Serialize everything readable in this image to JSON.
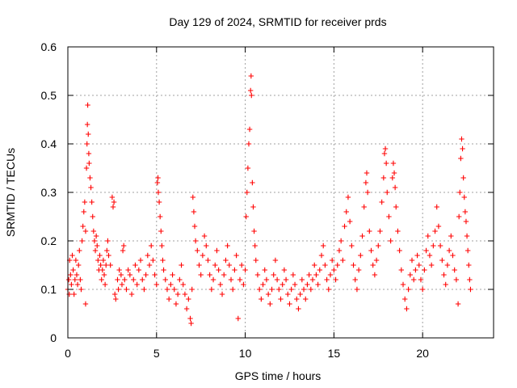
{
  "chart_data": {
    "type": "scatter",
    "title": "Day 129 of 2024, SRMTID for receiver prds",
    "xlabel": "GPS time / hours",
    "ylabel": "SRMTID / TECUs",
    "xlim": [
      0,
      24
    ],
    "ylim": [
      0,
      0.6
    ],
    "xticks": [
      0,
      5,
      10,
      15,
      20
    ],
    "xtick_labels": [
      "0",
      "5",
      "10",
      "15",
      "20"
    ],
    "yticks": [
      0,
      0.1,
      0.2,
      0.3,
      0.4,
      0.5,
      0.6
    ],
    "ytick_labels": [
      "0",
      "0.1",
      "0.2",
      "0.3",
      "0.4",
      "0.5",
      "0.6"
    ],
    "grid": true,
    "marker": "+",
    "point_color": "#ff0000",
    "series": [
      {
        "name": "SRMTID",
        "points": [
          [
            0.0,
            0.1
          ],
          [
            0.05,
            0.12
          ],
          [
            0.08,
            0.09
          ],
          [
            0.1,
            0.16
          ],
          [
            0.15,
            0.13
          ],
          [
            0.2,
            0.11
          ],
          [
            0.25,
            0.17
          ],
          [
            0.3,
            0.14
          ],
          [
            0.35,
            0.09
          ],
          [
            0.4,
            0.12
          ],
          [
            0.45,
            0.16
          ],
          [
            0.5,
            0.13
          ],
          [
            0.55,
            0.11
          ],
          [
            0.6,
            0.15
          ],
          [
            0.65,
            0.18
          ],
          [
            0.7,
            0.12
          ],
          [
            0.75,
            0.1
          ],
          [
            0.8,
            0.2
          ],
          [
            0.85,
            0.23
          ],
          [
            0.9,
            0.26
          ],
          [
            0.95,
            0.28
          ],
          [
            1.0,
            0.22
          ],
          [
            1.0,
            0.07
          ],
          [
            1.05,
            0.35
          ],
          [
            1.08,
            0.4
          ],
          [
            1.1,
            0.44
          ],
          [
            1.12,
            0.48
          ],
          [
            1.15,
            0.42
          ],
          [
            1.18,
            0.38
          ],
          [
            1.2,
            0.36
          ],
          [
            1.25,
            0.33
          ],
          [
            1.3,
            0.31
          ],
          [
            1.35,
            0.28
          ],
          [
            1.4,
            0.25
          ],
          [
            1.45,
            0.22
          ],
          [
            1.5,
            0.2
          ],
          [
            1.55,
            0.18
          ],
          [
            1.6,
            0.21
          ],
          [
            1.65,
            0.19
          ],
          [
            1.7,
            0.16
          ],
          [
            1.75,
            0.14
          ],
          [
            1.8,
            0.17
          ],
          [
            1.85,
            0.15
          ],
          [
            1.9,
            0.12
          ],
          [
            1.95,
            0.14
          ],
          [
            2.0,
            0.16
          ],
          [
            2.05,
            0.13
          ],
          [
            2.1,
            0.11
          ],
          [
            2.15,
            0.15
          ],
          [
            2.2,
            0.18
          ],
          [
            2.25,
            0.2
          ],
          [
            2.3,
            0.17
          ],
          [
            2.4,
            0.15
          ],
          [
            2.5,
            0.29
          ],
          [
            2.55,
            0.27
          ],
          [
            2.6,
            0.28
          ],
          [
            2.65,
            0.09
          ],
          [
            2.7,
            0.08
          ],
          [
            2.8,
            0.12
          ],
          [
            2.85,
            0.1
          ],
          [
            2.9,
            0.14
          ],
          [
            3.0,
            0.13
          ],
          [
            3.05,
            0.11
          ],
          [
            3.1,
            0.18
          ],
          [
            3.15,
            0.19
          ],
          [
            3.2,
            0.12
          ],
          [
            3.3,
            0.1
          ],
          [
            3.4,
            0.14
          ],
          [
            3.5,
            0.13
          ],
          [
            3.6,
            0.09
          ],
          [
            3.7,
            0.12
          ],
          [
            3.8,
            0.15
          ],
          [
            3.9,
            0.11
          ],
          [
            4.0,
            0.14
          ],
          [
            4.1,
            0.16
          ],
          [
            4.2,
            0.12
          ],
          [
            4.3,
            0.1
          ],
          [
            4.4,
            0.13
          ],
          [
            4.5,
            0.17
          ],
          [
            4.6,
            0.15
          ],
          [
            4.7,
            0.19
          ],
          [
            4.8,
            0.16
          ],
          [
            4.9,
            0.13
          ],
          [
            5.0,
            0.11
          ],
          [
            5.05,
            0.32
          ],
          [
            5.08,
            0.33
          ],
          [
            5.1,
            0.3
          ],
          [
            5.15,
            0.28
          ],
          [
            5.2,
            0.25
          ],
          [
            5.25,
            0.22
          ],
          [
            5.3,
            0.19
          ],
          [
            5.35,
            0.16
          ],
          [
            5.4,
            0.14
          ],
          [
            5.5,
            0.12
          ],
          [
            5.6,
            0.1
          ],
          [
            5.7,
            0.08
          ],
          [
            5.8,
            0.11
          ],
          [
            5.9,
            0.13
          ],
          [
            6.0,
            0.1
          ],
          [
            6.1,
            0.07
          ],
          [
            6.2,
            0.09
          ],
          [
            6.3,
            0.12
          ],
          [
            6.4,
            0.15
          ],
          [
            6.5,
            0.11
          ],
          [
            6.6,
            0.09
          ],
          [
            6.7,
            0.06
          ],
          [
            6.8,
            0.08
          ],
          [
            6.9,
            0.04
          ],
          [
            6.95,
            0.03
          ],
          [
            7.0,
            0.1
          ],
          [
            7.05,
            0.29
          ],
          [
            7.1,
            0.26
          ],
          [
            7.15,
            0.23
          ],
          [
            7.2,
            0.2
          ],
          [
            7.3,
            0.18
          ],
          [
            7.4,
            0.15
          ],
          [
            7.5,
            0.13
          ],
          [
            7.6,
            0.17
          ],
          [
            7.7,
            0.21
          ],
          [
            7.8,
            0.19
          ],
          [
            7.9,
            0.16
          ],
          [
            8.0,
            0.13
          ],
          [
            8.1,
            0.1
          ],
          [
            8.2,
            0.12
          ],
          [
            8.3,
            0.15
          ],
          [
            8.4,
            0.18
          ],
          [
            8.5,
            0.14
          ],
          [
            8.6,
            0.11
          ],
          [
            8.7,
            0.09
          ],
          [
            8.8,
            0.13
          ],
          [
            8.9,
            0.16
          ],
          [
            9.0,
            0.19
          ],
          [
            9.1,
            0.15
          ],
          [
            9.2,
            0.12
          ],
          [
            9.3,
            0.1
          ],
          [
            9.4,
            0.14
          ],
          [
            9.5,
            0.17
          ],
          [
            9.6,
            0.04
          ],
          [
            9.7,
            0.12
          ],
          [
            9.8,
            0.15
          ],
          [
            9.9,
            0.11
          ],
          [
            10.0,
            0.14
          ],
          [
            10.05,
            0.25
          ],
          [
            10.1,
            0.3
          ],
          [
            10.15,
            0.35
          ],
          [
            10.2,
            0.4
          ],
          [
            10.25,
            0.43
          ],
          [
            10.3,
            0.51
          ],
          [
            10.33,
            0.54
          ],
          [
            10.35,
            0.5
          ],
          [
            10.4,
            0.32
          ],
          [
            10.45,
            0.27
          ],
          [
            10.5,
            0.22
          ],
          [
            10.55,
            0.19
          ],
          [
            10.6,
            0.16
          ],
          [
            10.7,
            0.13
          ],
          [
            10.8,
            0.1
          ],
          [
            10.9,
            0.08
          ],
          [
            11.0,
            0.11
          ],
          [
            11.1,
            0.14
          ],
          [
            11.2,
            0.12
          ],
          [
            11.3,
            0.09
          ],
          [
            11.4,
            0.07
          ],
          [
            11.5,
            0.1
          ],
          [
            11.6,
            0.13
          ],
          [
            11.7,
            0.16
          ],
          [
            11.8,
            0.12
          ],
          [
            11.9,
            0.1
          ],
          [
            12.0,
            0.08
          ],
          [
            12.1,
            0.11
          ],
          [
            12.2,
            0.14
          ],
          [
            12.3,
            0.12
          ],
          [
            12.4,
            0.09
          ],
          [
            12.5,
            0.07
          ],
          [
            12.6,
            0.1
          ],
          [
            12.7,
            0.13
          ],
          [
            12.8,
            0.11
          ],
          [
            12.9,
            0.08
          ],
          [
            13.0,
            0.06
          ],
          [
            13.1,
            0.09
          ],
          [
            13.2,
            0.12
          ],
          [
            13.3,
            0.1
          ],
          [
            13.4,
            0.08
          ],
          [
            13.5,
            0.11
          ],
          [
            13.6,
            0.13
          ],
          [
            13.7,
            0.1
          ],
          [
            13.8,
            0.12
          ],
          [
            13.9,
            0.15
          ],
          [
            14.0,
            0.13
          ],
          [
            14.1,
            0.11
          ],
          [
            14.2,
            0.14
          ],
          [
            14.3,
            0.17
          ],
          [
            14.4,
            0.19
          ],
          [
            14.5,
            0.15
          ],
          [
            14.6,
            0.12
          ],
          [
            14.7,
            0.1
          ],
          [
            14.8,
            0.13
          ],
          [
            14.9,
            0.16
          ],
          [
            15.0,
            0.14
          ],
          [
            15.1,
            0.12
          ],
          [
            15.2,
            0.15
          ],
          [
            15.3,
            0.18
          ],
          [
            15.4,
            0.2
          ],
          [
            15.5,
            0.16
          ],
          [
            15.6,
            0.23
          ],
          [
            15.7,
            0.26
          ],
          [
            15.8,
            0.29
          ],
          [
            15.9,
            0.24
          ],
          [
            16.0,
            0.19
          ],
          [
            16.1,
            0.15
          ],
          [
            16.2,
            0.12
          ],
          [
            16.3,
            0.1
          ],
          [
            16.4,
            0.14
          ],
          [
            16.5,
            0.17
          ],
          [
            16.6,
            0.21
          ],
          [
            16.7,
            0.27
          ],
          [
            16.8,
            0.32
          ],
          [
            16.85,
            0.34
          ],
          [
            16.9,
            0.3
          ],
          [
            17.0,
            0.22
          ],
          [
            17.1,
            0.18
          ],
          [
            17.2,
            0.15
          ],
          [
            17.3,
            0.13
          ],
          [
            17.4,
            0.16
          ],
          [
            17.5,
            0.19
          ],
          [
            17.6,
            0.22
          ],
          [
            17.7,
            0.28
          ],
          [
            17.8,
            0.33
          ],
          [
            17.85,
            0.38
          ],
          [
            17.9,
            0.39
          ],
          [
            17.95,
            0.36
          ],
          [
            18.0,
            0.3
          ],
          [
            18.1,
            0.25
          ],
          [
            18.2,
            0.2
          ],
          [
            18.3,
            0.33
          ],
          [
            18.35,
            0.36
          ],
          [
            18.4,
            0.34
          ],
          [
            18.45,
            0.31
          ],
          [
            18.5,
            0.27
          ],
          [
            18.6,
            0.22
          ],
          [
            18.7,
            0.18
          ],
          [
            18.8,
            0.14
          ],
          [
            18.9,
            0.11
          ],
          [
            19.0,
            0.08
          ],
          [
            19.1,
            0.06
          ],
          [
            19.2,
            0.1
          ],
          [
            19.3,
            0.13
          ],
          [
            19.4,
            0.16
          ],
          [
            19.5,
            0.12
          ],
          [
            19.6,
            0.14
          ],
          [
            19.7,
            0.17
          ],
          [
            19.8,
            0.15
          ],
          [
            19.9,
            0.12
          ],
          [
            20.0,
            0.1
          ],
          [
            20.1,
            0.14
          ],
          [
            20.2,
            0.18
          ],
          [
            20.3,
            0.21
          ],
          [
            20.4,
            0.17
          ],
          [
            20.5,
            0.15
          ],
          [
            20.6,
            0.19
          ],
          [
            20.7,
            0.22
          ],
          [
            20.8,
            0.27
          ],
          [
            20.9,
            0.23
          ],
          [
            21.0,
            0.19
          ],
          [
            21.1,
            0.16
          ],
          [
            21.2,
            0.13
          ],
          [
            21.3,
            0.11
          ],
          [
            21.4,
            0.15
          ],
          [
            21.5,
            0.18
          ],
          [
            21.6,
            0.21
          ],
          [
            21.7,
            0.17
          ],
          [
            21.8,
            0.14
          ],
          [
            21.9,
            0.12
          ],
          [
            22.0,
            0.07
          ],
          [
            22.05,
            0.25
          ],
          [
            22.1,
            0.3
          ],
          [
            22.15,
            0.37
          ],
          [
            22.2,
            0.41
          ],
          [
            22.25,
            0.39
          ],
          [
            22.3,
            0.33
          ],
          [
            22.35,
            0.29
          ],
          [
            22.4,
            0.26
          ],
          [
            22.45,
            0.24
          ],
          [
            22.5,
            0.21
          ],
          [
            22.55,
            0.18
          ],
          [
            22.6,
            0.15
          ],
          [
            22.65,
            0.12
          ],
          [
            22.7,
            0.1
          ]
        ]
      }
    ]
  }
}
